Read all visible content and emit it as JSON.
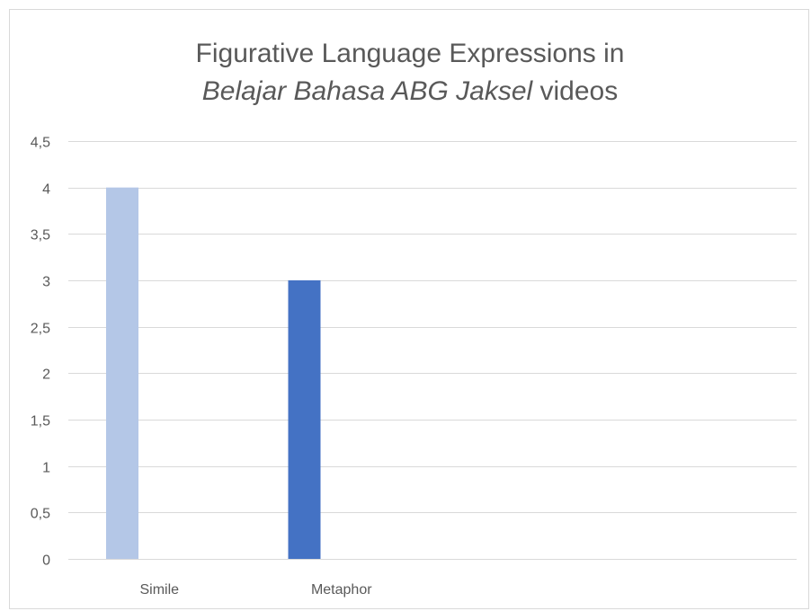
{
  "chart_data": {
    "type": "bar",
    "title": {
      "line1": "Figurative Language Expressions in",
      "line2_italic": "Belajar Bahasa ABG Jaksel",
      "line2_rest": " videos"
    },
    "categories": [
      "Simile",
      "Metaphor",
      "",
      ""
    ],
    "series": [
      {
        "values": [
          4,
          3,
          null,
          null
        ],
        "colors": [
          "#b4c7e7",
          "#4472c4",
          null,
          null
        ]
      }
    ],
    "ylim": [
      0,
      4.5
    ],
    "yticks": [
      0,
      0.5,
      1,
      1.5,
      2,
      2.5,
      3,
      3.5,
      4,
      4.5
    ],
    "ytick_labels": [
      "0",
      "0,5",
      "1",
      "1,5",
      "2",
      "2,5",
      "3",
      "3,5",
      "4",
      "4,5"
    ],
    "grid": true,
    "gridline_color": "#d9d9d9",
    "legend": "none"
  }
}
